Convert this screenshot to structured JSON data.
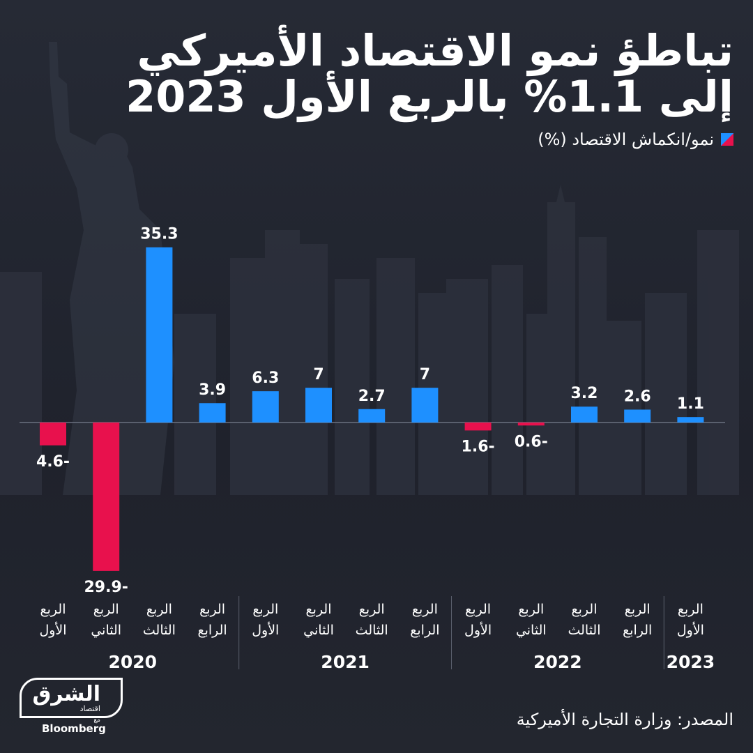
{
  "title_line1": "تباطؤ نمو الاقتصاد الأميركي",
  "title_line2": "إلى 1.1% بالربع الأول 2023",
  "legend_label": "نمو/انكماش الاقتصاد (%)",
  "source": "المصدر:  وزارة التجارة الأميركية",
  "logo": {
    "main": "الشرق",
    "sub": "اقتصاد",
    "with": "مع",
    "partner": "Bloomberg"
  },
  "colors": {
    "positive": "#1e90ff",
    "negative": "#e8114d"
  },
  "chart_data": {
    "type": "bar",
    "values": [
      -4.6,
      -29.9,
      35.3,
      3.9,
      6.3,
      7,
      2.7,
      7,
      -1.6,
      -0.6,
      3.2,
      2.6,
      1.1
    ],
    "value_labels": [
      "4.6-",
      "29.9-",
      "35.3",
      "3.9",
      "6.3",
      "7",
      "2.7",
      "7",
      "1.6-",
      "0.6-",
      "3.2",
      "2.6",
      "1.1"
    ],
    "categories": [
      [
        "الربع",
        "الأول"
      ],
      [
        "الربع",
        "الثاني"
      ],
      [
        "الربع",
        "الثالث"
      ],
      [
        "الربع",
        "الرابع"
      ],
      [
        "الربع",
        "الأول"
      ],
      [
        "الربع",
        "الثاني"
      ],
      [
        "الربع",
        "الثالث"
      ],
      [
        "الربع",
        "الرابع"
      ],
      [
        "الربع",
        "الأول"
      ],
      [
        "الربع",
        "الثاني"
      ],
      [
        "الربع",
        "الثالث"
      ],
      [
        "الربع",
        "الرابع"
      ],
      [
        "الربع",
        "الأول"
      ]
    ],
    "years": [
      {
        "label": "2020",
        "count": 4
      },
      {
        "label": "2021",
        "count": 4
      },
      {
        "label": "2022",
        "count": 4
      },
      {
        "label": "2023",
        "count": 1
      }
    ]
  }
}
